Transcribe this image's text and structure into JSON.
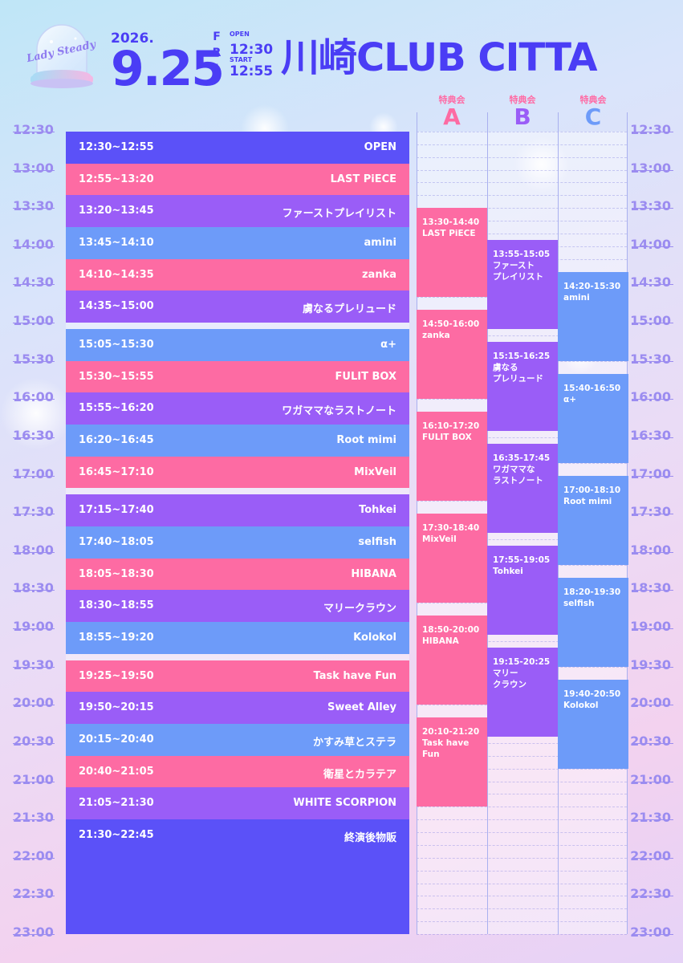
{
  "logo": {
    "text": "Lady Steady"
  },
  "header": {
    "year": "2026.",
    "date": "9.25",
    "dow": [
      "F",
      "R",
      "I"
    ],
    "open_label": "OPEN",
    "open_time": "12:30",
    "start_label": "START",
    "start_time": "12:55",
    "venue": "川崎CLUB CITTA"
  },
  "time_labels": [
    "12:30",
    "13:00",
    "13:30",
    "14:00",
    "14:30",
    "15:00",
    "15:30",
    "16:00",
    "16:30",
    "17:00",
    "17:30",
    "18:00",
    "18:30",
    "19:00",
    "19:30",
    "20:00",
    "20:30",
    "21:00",
    "21:30",
    "22:00",
    "22:30",
    "23:00"
  ],
  "colors": {
    "blue": "#5b51f8",
    "pink": "#fd6ba3",
    "purple": "#9a5df7",
    "light_blue": "#6d9bf9",
    "text_accent": "#4a3df5",
    "time_label": "#9b8cf0"
  },
  "schedule": [
    {
      "time": "12:30~12:55",
      "name": "OPEN",
      "color": "#5b51f8"
    },
    {
      "time": "12:55~13:20",
      "name": "LAST PiECE",
      "color": "#fd6ba3"
    },
    {
      "time": "13:20~13:45",
      "name": "ファーストプレイリスト",
      "color": "#9a5df7"
    },
    {
      "time": "13:45~14:10",
      "name": "amini",
      "color": "#6d9bf9"
    },
    {
      "time": "14:10~14:35",
      "name": "zanka",
      "color": "#fd6ba3"
    },
    {
      "time": "14:35~15:00",
      "name": "虜なるプレリュード",
      "color": "#9a5df7"
    },
    {
      "time": "15:05~15:30",
      "name": "α+",
      "color": "#6d9bf9"
    },
    {
      "time": "15:30~15:55",
      "name": "FULIT BOX",
      "color": "#fd6ba3"
    },
    {
      "time": "15:55~16:20",
      "name": "ワガママなラストノート",
      "color": "#9a5df7"
    },
    {
      "time": "16:20~16:45",
      "name": "Root mimi",
      "color": "#6d9bf9"
    },
    {
      "time": "16:45~17:10",
      "name": "MixVeil",
      "color": "#fd6ba3"
    },
    {
      "time": "17:15~17:40",
      "name": "Tohkei",
      "color": "#9a5df7"
    },
    {
      "time": "17:40~18:05",
      "name": "selfish",
      "color": "#6d9bf9"
    },
    {
      "time": "18:05~18:30",
      "name": "HIBANA",
      "color": "#fd6ba3"
    },
    {
      "time": "18:30~18:55",
      "name": "マリークラウン",
      "color": "#9a5df7"
    },
    {
      "time": "18:55~19:20",
      "name": "Kolokol",
      "color": "#6d9bf9"
    },
    {
      "time": "19:25~19:50",
      "name": "Task have Fun",
      "color": "#fd6ba3"
    },
    {
      "time": "19:50~20:15",
      "name": "Sweet Alley",
      "color": "#9a5df7"
    },
    {
      "time": "20:15~20:40",
      "name": "かすみ草とステラ",
      "color": "#6d9bf9"
    },
    {
      "time": "20:40~21:05",
      "name": "衛星とカラテア",
      "color": "#fd6ba3"
    },
    {
      "time": "21:05~21:30",
      "name": "WHITE SCORPION",
      "color": "#9a5df7"
    },
    {
      "time": "21:30~22:45",
      "name": "終演後物販",
      "color": "#5b51f8"
    }
  ],
  "benefit_columns": [
    {
      "label": "特典会",
      "letter": "A",
      "letter_color": "#fd6ba3"
    },
    {
      "label": "特典会",
      "letter": "B",
      "letter_color": "#9a5df7"
    },
    {
      "label": "特典会",
      "letter": "C",
      "letter_color": "#6d9bf9"
    }
  ],
  "benefits": [
    {
      "col": 0,
      "time": "13:30-14:40",
      "name": "LAST PiECE",
      "color": "#fd6ba3"
    },
    {
      "col": 0,
      "time": "14:50-16:00",
      "name": "zanka",
      "color": "#fd6ba3"
    },
    {
      "col": 0,
      "time": "16:10-17:20",
      "name": "FULIT BOX",
      "color": "#fd6ba3"
    },
    {
      "col": 0,
      "time": "17:30-18:40",
      "name": "MixVeil",
      "color": "#fd6ba3"
    },
    {
      "col": 0,
      "time": "18:50-20:00",
      "name": "HIBANA",
      "color": "#fd6ba3"
    },
    {
      "col": 0,
      "time": "20:10-21:20",
      "name": "Task have\nFun",
      "color": "#fd6ba3"
    },
    {
      "col": 1,
      "time": "13:55-15:05",
      "name": "ファースト\nプレイリスト",
      "color": "#9a5df7"
    },
    {
      "col": 1,
      "time": "15:15-16:25",
      "name": "虜なる\nプレリュード",
      "color": "#9a5df7"
    },
    {
      "col": 1,
      "time": "16:35-17:45",
      "name": "ワガママな\nラストノート",
      "color": "#9a5df7"
    },
    {
      "col": 1,
      "time": "17:55-19:05",
      "name": "Tohkei",
      "color": "#9a5df7"
    },
    {
      "col": 1,
      "time": "19:15-20:25",
      "name": "マリー\nクラウン",
      "color": "#9a5df7"
    },
    {
      "col": 2,
      "time": "14:20-15:30",
      "name": "amini",
      "color": "#6d9bf9"
    },
    {
      "col": 2,
      "time": "15:40-16:50",
      "name": "α+",
      "color": "#6d9bf9"
    },
    {
      "col": 2,
      "time": "17:00-18:10",
      "name": "Root mimi",
      "color": "#6d9bf9"
    },
    {
      "col": 2,
      "time": "18:20-19:30",
      "name": "selfish",
      "color": "#6d9bf9"
    },
    {
      "col": 2,
      "time": "19:40-20:50",
      "name": "Kolokol",
      "color": "#6d9bf9"
    }
  ]
}
